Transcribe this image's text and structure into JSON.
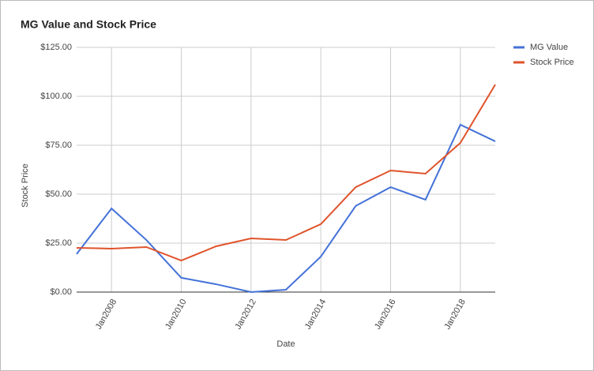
{
  "chart_data": {
    "type": "line",
    "title": "MG Value and Stock Price",
    "x_label": "Date",
    "y_label": "Stock Price",
    "x": [
      2007,
      2008,
      2009,
      2010,
      2011,
      2012,
      2013,
      2014,
      2015,
      2016,
      2017,
      2018,
      2019
    ],
    "series": [
      {
        "name": "MG Value",
        "color": "#4472d8",
        "values": [
          19.4,
          42.7,
          26.6,
          7.3,
          4.0,
          0,
          1.2,
          18.1,
          44,
          53.6,
          47.2,
          85.5,
          77
        ]
      },
      {
        "name": "Stock Price",
        "color": "#e0532b",
        "values": [
          22.6,
          22.2,
          23,
          16.1,
          23.4,
          27.4,
          26.6,
          34.7,
          53.6,
          62.1,
          60.5,
          76.2,
          106
        ]
      }
    ],
    "xlim": [
      2007,
      2019
    ],
    "xticks": [
      {
        "value": 2008,
        "label": "Jan2008"
      },
      {
        "value": 2010,
        "label": "Jan2010"
      },
      {
        "value": 2012,
        "label": "Jan2012"
      },
      {
        "value": 2014,
        "label": "Jan2014"
      },
      {
        "value": 2016,
        "label": "Jan2016"
      },
      {
        "value": 2018,
        "label": "Jan2018"
      }
    ],
    "ylim": [
      0,
      125
    ],
    "yticks": [
      {
        "value": 0,
        "label": "$0.00"
      },
      {
        "value": 25,
        "label": "$25.00"
      },
      {
        "value": 50,
        "label": "$50.00"
      },
      {
        "value": 75,
        "label": "$75.00"
      },
      {
        "value": 100,
        "label": "$100.00"
      },
      {
        "value": 125,
        "label": "$125.00"
      }
    ],
    "grid": true,
    "legend": "right"
  }
}
